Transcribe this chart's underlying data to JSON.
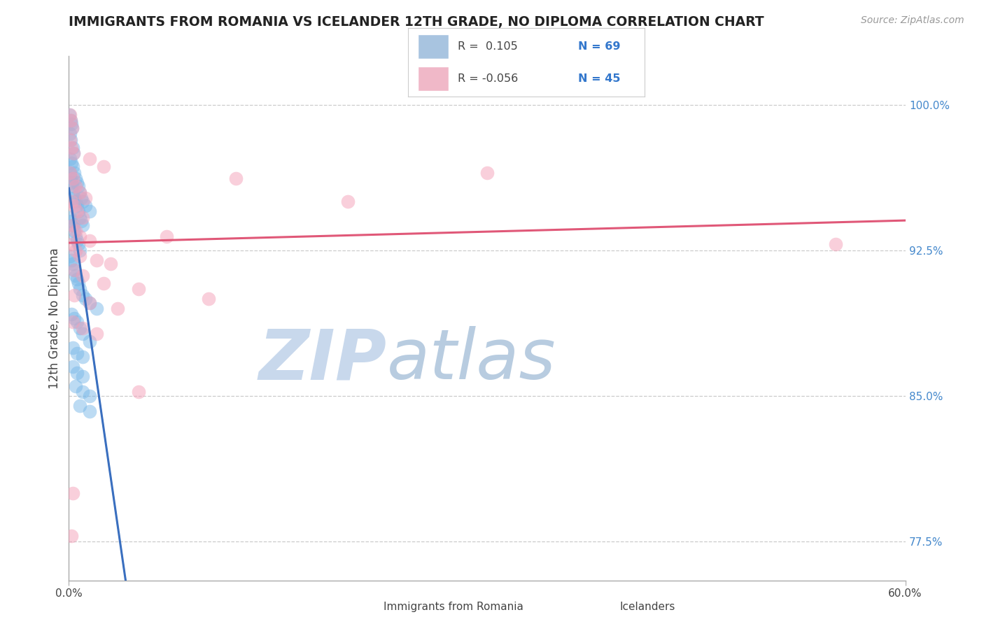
{
  "title": "IMMIGRANTS FROM ROMANIA VS ICELANDER 12TH GRADE, NO DIPLOMA CORRELATION CHART",
  "source": "Source: ZipAtlas.com",
  "xlim": [
    0.0,
    60.0
  ],
  "ylim": [
    75.5,
    102.5
  ],
  "ylabel": "12th Grade, No Diploma",
  "romania_color": "#7ab8e8",
  "iceland_color": "#f4a0b8",
  "trend_romania_color": "#3a6fbf",
  "trend_iceland_color": "#e05878",
  "dashed_color": "#9ab8d8",
  "romania_scatter": [
    [
      0.05,
      99.5
    ],
    [
      0.12,
      99.2
    ],
    [
      0.18,
      99.0
    ],
    [
      0.08,
      98.5
    ],
    [
      0.22,
      98.8
    ],
    [
      0.15,
      98.2
    ],
    [
      0.28,
      97.8
    ],
    [
      0.35,
      97.5
    ],
    [
      0.1,
      97.2
    ],
    [
      0.2,
      97.0
    ],
    [
      0.3,
      96.8
    ],
    [
      0.4,
      96.5
    ],
    [
      0.5,
      96.2
    ],
    [
      0.6,
      96.0
    ],
    [
      0.7,
      95.8
    ],
    [
      0.8,
      95.5
    ],
    [
      0.9,
      95.2
    ],
    [
      1.0,
      95.0
    ],
    [
      1.2,
      94.8
    ],
    [
      1.5,
      94.5
    ],
    [
      0.1,
      96.5
    ],
    [
      0.15,
      96.2
    ],
    [
      0.2,
      96.0
    ],
    [
      0.25,
      95.8
    ],
    [
      0.3,
      95.5
    ],
    [
      0.4,
      95.2
    ],
    [
      0.5,
      95.0
    ],
    [
      0.6,
      94.8
    ],
    [
      0.7,
      94.5
    ],
    [
      0.8,
      94.2
    ],
    [
      0.9,
      94.0
    ],
    [
      1.0,
      93.8
    ],
    [
      0.1,
      94.2
    ],
    [
      0.2,
      94.0
    ],
    [
      0.3,
      93.8
    ],
    [
      0.4,
      93.5
    ],
    [
      0.5,
      93.2
    ],
    [
      0.6,
      93.0
    ],
    [
      0.7,
      92.8
    ],
    [
      0.8,
      92.5
    ],
    [
      0.1,
      92.2
    ],
    [
      0.2,
      92.0
    ],
    [
      0.3,
      91.8
    ],
    [
      0.4,
      91.5
    ],
    [
      0.5,
      91.2
    ],
    [
      0.6,
      91.0
    ],
    [
      0.7,
      90.8
    ],
    [
      0.8,
      90.5
    ],
    [
      1.0,
      90.2
    ],
    [
      1.2,
      90.0
    ],
    [
      1.5,
      89.8
    ],
    [
      2.0,
      89.5
    ],
    [
      0.2,
      89.2
    ],
    [
      0.4,
      89.0
    ],
    [
      0.6,
      88.8
    ],
    [
      0.8,
      88.5
    ],
    [
      1.0,
      88.2
    ],
    [
      1.5,
      87.8
    ],
    [
      0.3,
      87.5
    ],
    [
      0.6,
      87.2
    ],
    [
      1.0,
      87.0
    ],
    [
      0.3,
      86.5
    ],
    [
      0.6,
      86.2
    ],
    [
      1.0,
      86.0
    ],
    [
      0.5,
      85.5
    ],
    [
      1.0,
      85.2
    ],
    [
      1.5,
      85.0
    ],
    [
      0.8,
      84.5
    ],
    [
      1.5,
      84.2
    ]
  ],
  "iceland_scatter": [
    [
      0.08,
      99.5
    ],
    [
      0.15,
      99.2
    ],
    [
      0.25,
      98.8
    ],
    [
      0.1,
      98.2
    ],
    [
      0.2,
      97.8
    ],
    [
      0.35,
      97.5
    ],
    [
      1.5,
      97.2
    ],
    [
      2.5,
      96.8
    ],
    [
      0.1,
      96.5
    ],
    [
      0.3,
      96.2
    ],
    [
      0.5,
      95.8
    ],
    [
      0.8,
      95.5
    ],
    [
      1.2,
      95.2
    ],
    [
      0.2,
      95.0
    ],
    [
      0.4,
      94.8
    ],
    [
      0.6,
      94.5
    ],
    [
      1.0,
      94.2
    ],
    [
      0.3,
      93.8
    ],
    [
      0.5,
      93.5
    ],
    [
      0.8,
      93.2
    ],
    [
      1.5,
      93.0
    ],
    [
      0.2,
      92.8
    ],
    [
      0.5,
      92.5
    ],
    [
      0.8,
      92.2
    ],
    [
      2.0,
      92.0
    ],
    [
      3.0,
      91.8
    ],
    [
      0.4,
      91.5
    ],
    [
      1.0,
      91.2
    ],
    [
      2.5,
      90.8
    ],
    [
      5.0,
      90.5
    ],
    [
      0.4,
      90.2
    ],
    [
      1.5,
      89.8
    ],
    [
      3.5,
      89.5
    ],
    [
      0.3,
      88.8
    ],
    [
      1.0,
      88.5
    ],
    [
      2.0,
      88.2
    ],
    [
      7.0,
      93.2
    ],
    [
      12.0,
      96.2
    ],
    [
      20.0,
      95.0
    ],
    [
      30.0,
      96.5
    ],
    [
      0.3,
      80.0
    ],
    [
      0.2,
      77.8
    ],
    [
      5.0,
      85.2
    ],
    [
      10.0,
      90.0
    ],
    [
      55.0,
      92.8
    ]
  ],
  "watermark_zip": "ZIP",
  "watermark_atlas": "atlas",
  "watermark_color_zip": "#c8d8ec",
  "watermark_color_atlas": "#b8cce0",
  "ytick_vals": [
    77.5,
    85.0,
    92.5,
    100.0
  ],
  "legend_r_romania": "R =  0.105",
  "legend_n_romania": "N = 69",
  "legend_r_iceland": "R = -0.056",
  "legend_n_iceland": "N = 45"
}
